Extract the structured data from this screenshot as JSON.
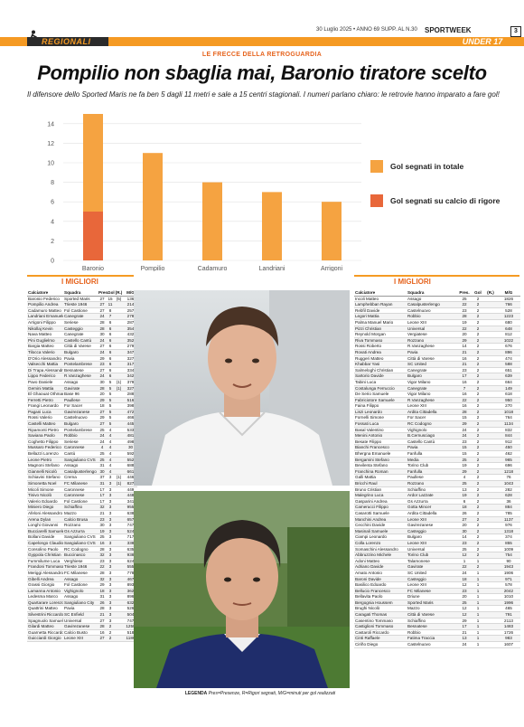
{
  "header": {
    "date": "30 Luglio 2025 • ANNO 69 SUPP. AL N.30",
    "brand": "SPORTWEEK",
    "page_number": "3",
    "section": "REGIONALI",
    "category": "UNDER 17"
  },
  "article": {
    "kicker": "LE FRECCE DELLA RETROGUARDIA",
    "headline": "Pompilio non sbaglia mai, Baronio tiratore scelto",
    "summary": "Il difensore dello Sported Maris ne fa ben 5 dagli 11 metri e sale a 15 centri stagionali. I numeri parlano chiaro: le retrovie hanno imparato a fare gol!"
  },
  "chart_data": {
    "type": "bar",
    "categories": [
      "Baronio",
      "Pompilio",
      "Cadamuro",
      "Landriani",
      "Arrigoni"
    ],
    "series": [
      {
        "name": "Gol segnati in totale",
        "color": "#f5a341",
        "values": [
          15,
          11,
          8,
          7,
          6
        ]
      },
      {
        "name": "Gol segnati su calcio di rigore",
        "color": "#e8673a",
        "values": [
          5,
          null,
          null,
          null,
          null
        ]
      }
    ],
    "ylim": [
      0,
      15
    ],
    "yticks": [
      0,
      2,
      4,
      6,
      8,
      10,
      12,
      14
    ],
    "grid": true,
    "legend": "right"
  },
  "left_table": {
    "title": "I MIGLIORI",
    "headers": [
      "Calciatore",
      "Squadra",
      "Pres.",
      "Gol",
      "(R.)",
      "M/G"
    ],
    "rows": [
      [
        "Baronio Federico",
        "Sported Maris",
        "27",
        "15",
        "(5)",
        "136"
      ],
      [
        "Pompilio Andrea",
        "Trieste 1946",
        "27",
        "11",
        "",
        "214"
      ],
      [
        "Cadamuro Matteo",
        "Fol Castione",
        "27",
        "8",
        "",
        "257"
      ],
      [
        "Landriani Emanuele",
        "Canegrate",
        "24",
        "7",
        "",
        "278"
      ],
      [
        "Arrigoni Filippo",
        "Seriese",
        "28",
        "6",
        "",
        "287"
      ],
      [
        "Nikollaj Kevin",
        "Casteggio",
        "28",
        "6",
        "",
        "354"
      ],
      [
        "Nava Matteo",
        "Canegrate",
        "30",
        "6",
        "",
        "432"
      ],
      [
        "Pini Guglielmo",
        "Castello Cantù",
        "24",
        "6",
        "",
        "352"
      ],
      [
        "Bargia Matteo",
        "Città di Varese",
        "27",
        "6",
        "",
        "279"
      ],
      [
        "Tilocca Valerio",
        "Bulgaro",
        "24",
        "6",
        "",
        "347"
      ],
      [
        "D'Orio Alessandro",
        "Pavia",
        "29",
        "6",
        "",
        "327"
      ],
      [
        "Valsecchi Mattia",
        "Pontelambrese",
        "23",
        "6",
        "",
        "317"
      ],
      [
        "Di Trapa Alessandro",
        "Besnatese",
        "27",
        "6",
        "",
        "334"
      ],
      [
        "Lippo Federico",
        "R.Vanzaghese",
        "24",
        "6",
        "",
        "342"
      ],
      [
        "Pavo Daniele",
        "Assago",
        "30",
        "5",
        "(1)",
        "379"
      ],
      [
        "Gemini Mattia",
        "Gavirate",
        "28",
        "5",
        "(1)",
        "327"
      ],
      [
        "El Ghaouat Othmane",
        "Base 96",
        "20",
        "5",
        "",
        "288"
      ],
      [
        "Ferretti Pietro",
        "Paullese",
        "29",
        "5",
        "",
        "516"
      ],
      [
        "Frangi Leonardo",
        "For Sacer",
        "18",
        "5",
        "",
        "398"
      ],
      [
        "Pagani Luca",
        "Gavirezanese",
        "27",
        "5",
        "",
        "472"
      ],
      [
        "Rossi Valerio",
        "Castelnuovo",
        "29",
        "5",
        "",
        "466"
      ],
      [
        "Castelli Matteo",
        "Bulgaro",
        "27",
        "5",
        "",
        "445"
      ],
      [
        "Ripamonti Pietro",
        "Pontelambrese",
        "25",
        "4",
        "",
        "533"
      ],
      [
        "Saviana Paolo",
        "Robbio",
        "24",
        "4",
        "",
        "481"
      ],
      [
        "Coghetto Filippo",
        "Seriese",
        "24",
        "4",
        "",
        "498"
      ],
      [
        "Mussaro Federico",
        "Caronnese",
        "4",
        "4",
        "",
        "30"
      ],
      [
        "Bellazzi Lorenzo",
        "Cantù",
        "25",
        "4",
        "",
        "592"
      ],
      [
        "Leone Pietro",
        "Sangiuliano CVS",
        "25",
        "4",
        "",
        "552"
      ],
      [
        "Magnoni Stefano",
        "Assago",
        "31",
        "4",
        "",
        "688"
      ],
      [
        "Giannelli Nicolò",
        "Casalpusterlengo",
        "30",
        "4",
        "",
        "661"
      ],
      [
        "Schiavini Stefano",
        "Crema",
        "37",
        "3",
        "(1)",
        "446"
      ],
      [
        "Simonetta Noel",
        "FC Milanese",
        "31",
        "3",
        "(1)",
        "827"
      ],
      [
        "Micoli Simone",
        "Caronnese",
        "17",
        "3",
        "",
        "449"
      ],
      [
        "Tinivo Nicolò",
        "Caronnese",
        "17",
        "3",
        "",
        "448"
      ],
      [
        "Valerio Edoardo",
        "Fol Castione",
        "17",
        "3",
        "",
        "341"
      ],
      [
        "Miniero Diego",
        "Schiaffino",
        "32",
        "3",
        "",
        "955"
      ],
      [
        "Afeloni Alessandro",
        "Mazzo",
        "21",
        "3",
        "",
        "638"
      ],
      [
        "Arena Dylan",
        "Calcio Brusa",
        "23",
        "3",
        "",
        "657"
      ],
      [
        "Longhi Giovanni",
        "Rozzano",
        "30",
        "3",
        "",
        "747"
      ],
      [
        "Bucciarelli Samuele",
        "Gs Azzurra",
        "19",
        "3",
        "",
        "524"
      ],
      [
        "Bollani Davide",
        "Sangiuliano CVS",
        "25",
        "3",
        "",
        "717"
      ],
      [
        "Capelongo Claudio",
        "Sangiuliano CVS",
        "16",
        "3",
        "",
        "338"
      ],
      [
        "Consolino Paolo",
        "RC Codogno",
        "28",
        "3",
        "",
        "635"
      ],
      [
        "Gyppola Christian",
        "Buccinasco",
        "32",
        "3",
        "",
        "938"
      ],
      [
        "Fummilume Luca",
        "Verghiese",
        "23",
        "3",
        "",
        "624"
      ],
      [
        "Frandoni Tommaso",
        "Trieste 1946",
        "22",
        "3",
        "",
        "555"
      ],
      [
        "Meriggi Alessandro",
        "FC Milanese",
        "28",
        "3",
        "",
        "778"
      ],
      [
        "Gibelli Andrea",
        "Assago",
        "32",
        "3",
        "",
        "467"
      ],
      [
        "Grassi Giorgio",
        "Fol Castione",
        "29",
        "3",
        "",
        "893"
      ],
      [
        "Lamanna Antonio",
        "Vighignolo",
        "18",
        "3",
        "",
        "362"
      ],
      [
        "Ledesma Marco",
        "Assago",
        "31",
        "3",
        "",
        "896"
      ],
      [
        "Quartarare Lorenzo",
        "Sangiuliano City",
        "26",
        "3",
        "",
        "632"
      ],
      [
        "Quattrini Matteo",
        "Pavia",
        "28",
        "3",
        "",
        "526"
      ],
      [
        "Silvestrini Riccardo",
        "SC Enfield",
        "21",
        "3",
        "",
        "504"
      ],
      [
        "Spagnuolo Samuele",
        "Universal",
        "27",
        "3",
        "",
        "747"
      ],
      [
        "Gilardi Matteo",
        "Gavirezanese",
        "28",
        "2",
        "",
        "1250"
      ],
      [
        "Guarnetta Riccardo",
        "Calcio Busto",
        "16",
        "2",
        "",
        "518"
      ],
      [
        "Guicciardi Giorgio",
        "Leone XIII",
        "27",
        "2",
        "",
        "1186"
      ]
    ]
  },
  "right_table": {
    "title": "I MIGLIORI",
    "headers": [
      "Calciatore",
      "Squadra",
      "Pres.",
      "Gol",
      "(R.)",
      "M/G"
    ],
    "rows": [
      [
        "Incoli Matteo",
        "Assago",
        "25",
        "2",
        "",
        "1826"
      ],
      [
        "Lamphebban Rayan",
        "Casalpusterlengo",
        "22",
        "2",
        "",
        "766"
      ],
      [
        "Rebfil Davide",
        "Castelnuovo",
        "23",
        "2",
        "",
        "528"
      ],
      [
        "Legori Mattia",
        "Robbio",
        "28",
        "2",
        "",
        "1223"
      ],
      [
        "Palma Manuel Mario",
        "Leone XIII",
        "19",
        "2",
        "",
        "680"
      ],
      [
        "Pizzi Christian",
        "Universal",
        "22",
        "2",
        "",
        "648"
      ],
      [
        "Reynold Morgan",
        "Vergiatese",
        "20",
        "2",
        "",
        "812"
      ],
      [
        "Riva Tommaso",
        "Rozzano",
        "29",
        "2",
        "",
        "1022"
      ],
      [
        "Rossi Roberto",
        "R.Vanzaghese",
        "14",
        "2",
        "",
        "676"
      ],
      [
        "Rovati Andrea",
        "Pavia",
        "21",
        "2",
        "",
        "896"
      ],
      [
        "Ruggeri Matteo",
        "Città di Varese",
        "16",
        "2",
        "",
        "474"
      ],
      [
        "Khabbar Yasi",
        "SC United",
        "21",
        "2",
        "",
        "588"
      ],
      [
        "Salmeloghi Christian",
        "Canegrate",
        "23",
        "2",
        "",
        "651"
      ],
      [
        "Sartorio Davide",
        "Bulgaro",
        "17",
        "2",
        "",
        "639"
      ],
      [
        "Tabini Luca",
        "Vigor Milano",
        "16",
        "2",
        "",
        "664"
      ],
      [
        "Costalunga Ferruccio",
        "Canegrate",
        "7",
        "2",
        "",
        "149"
      ],
      [
        "De Serio Samuele",
        "Vigor Milano",
        "16",
        "2",
        "",
        "618"
      ],
      [
        "Fabriciotore Samuele",
        "R.Vanzaghese",
        "22",
        "2",
        "",
        "950"
      ],
      [
        "Faina Filippo",
        "Leone XIII",
        "16",
        "2",
        "",
        "270"
      ],
      [
        "Liszi Leonardo",
        "Ardita Cittadella",
        "28",
        "2",
        "",
        "1018"
      ],
      [
        "Fornelli Simone",
        "For Sacer",
        "15",
        "2",
        "",
        "764"
      ],
      [
        "Fossati Luca",
        "RC Codogno",
        "29",
        "2",
        "",
        "1134"
      ],
      [
        "Basal Valentino",
        "Vighignolo",
        "24",
        "2",
        "",
        "832"
      ],
      [
        "Menini Antonio",
        "B.Cernusciago",
        "24",
        "2",
        "",
        "844"
      ],
      [
        "Besate Filippo",
        "Castello Cantù",
        "23",
        "2",
        "",
        "912"
      ],
      [
        "Bianchi Francesco",
        "Pavia",
        "15",
        "2",
        "",
        "450"
      ],
      [
        "Bhergna Emanuele",
        "Fanfulla",
        "15",
        "2",
        "",
        "462"
      ],
      [
        "Bergamini Stefano",
        "Media",
        "25",
        "2",
        "",
        "965"
      ],
      [
        "Bevilenta Stefano",
        "Torino Club",
        "19",
        "2",
        "",
        "696"
      ],
      [
        "Franchina Roman",
        "Fanfulla",
        "29",
        "2",
        "",
        "1218"
      ],
      [
        "Galli Mattia",
        "Paullese",
        "4",
        "2",
        "",
        "76"
      ],
      [
        "Bricchi Raul",
        "Rozzano",
        "25",
        "2",
        "",
        "1043"
      ],
      [
        "Bruno Cristian",
        "Schiaffino",
        "13",
        "2",
        "",
        "282"
      ],
      [
        "Malegrino Luca",
        "Ardor Lazzate",
        "19",
        "2",
        "",
        "628"
      ],
      [
        "Gasparini Andrea",
        "Gs Azzurra",
        "6",
        "2",
        "",
        "36"
      ],
      [
        "Camerucci Filippo",
        "Gotta Mincer",
        "18",
        "2",
        "",
        "884"
      ],
      [
        "Casarotti Samuele",
        "Ardita Cittadella",
        "26",
        "2",
        "",
        "785"
      ],
      [
        "Manchini Andrea",
        "Leone XIII",
        "27",
        "2",
        "",
        "1137"
      ],
      [
        "Cecchini Davide",
        "Gavirezanese",
        "20",
        "2",
        "",
        "976"
      ],
      [
        "Masinali Samuele",
        "Casteggio",
        "30",
        "2",
        "",
        "1318"
      ],
      [
        "Ciampi Leonardo",
        "Bulgaro",
        "14",
        "2",
        "",
        "374"
      ],
      [
        "Colla Lorenzo",
        "Leone XIII",
        "23",
        "2",
        "",
        "855"
      ],
      [
        "Somaschini Alessandro",
        "Universal",
        "25",
        "2",
        "",
        "1009"
      ],
      [
        "Abbruzzino Michele",
        "Torino Club",
        "12",
        "2",
        "",
        "754"
      ],
      [
        "Adoni Matteo",
        "Talamonese",
        "1",
        "1",
        "",
        "90"
      ],
      [
        "Adriano Davide",
        "Gavirate",
        "22",
        "2",
        "",
        "1943"
      ],
      [
        "Amato Antonio",
        "SC United",
        "24",
        "1",
        "",
        "1906"
      ],
      [
        "Baroni Davide",
        "Casteggio",
        "18",
        "1",
        "",
        "971"
      ],
      [
        "Basilico Edoardo",
        "Leone XIII",
        "12",
        "1",
        "",
        "578"
      ],
      [
        "Bellucio Francesco",
        "FC Milanese",
        "23",
        "1",
        "",
        "2042"
      ],
      [
        "Bellavita Paolo",
        "Driune",
        "20",
        "1",
        "",
        "1010"
      ],
      [
        "Bergognia Houssem",
        "Sported Maris",
        "25",
        "1",
        "",
        "1996"
      ],
      [
        "Brughi Nicolò",
        "Mazzo",
        "12",
        "1",
        "",
        "465"
      ],
      [
        "Caragati Thomas",
        "Città di Varese",
        "12",
        "1",
        "",
        "791"
      ],
      [
        "Casentino Tommaso",
        "Schiaffino",
        "29",
        "1",
        "",
        "2113"
      ],
      [
        "Castiglioni Tommaso",
        "Besnatese",
        "17",
        "1",
        "",
        "1483"
      ],
      [
        "Castaroli Riccardo",
        "Robbio",
        "21",
        "1",
        "",
        "1726"
      ],
      [
        "Cinti Raffaele",
        "Fatima Traccia",
        "13",
        "1",
        "",
        "983"
      ],
      [
        "Ciriño Diego",
        "Castelnuovo",
        "24",
        "1",
        "",
        "1607"
      ]
    ]
  },
  "legend_note": {
    "label": "LEGENDA",
    "text": "Pres=Presenze, R=Rigori segnati, M/G=minuti per gol realizzati"
  }
}
